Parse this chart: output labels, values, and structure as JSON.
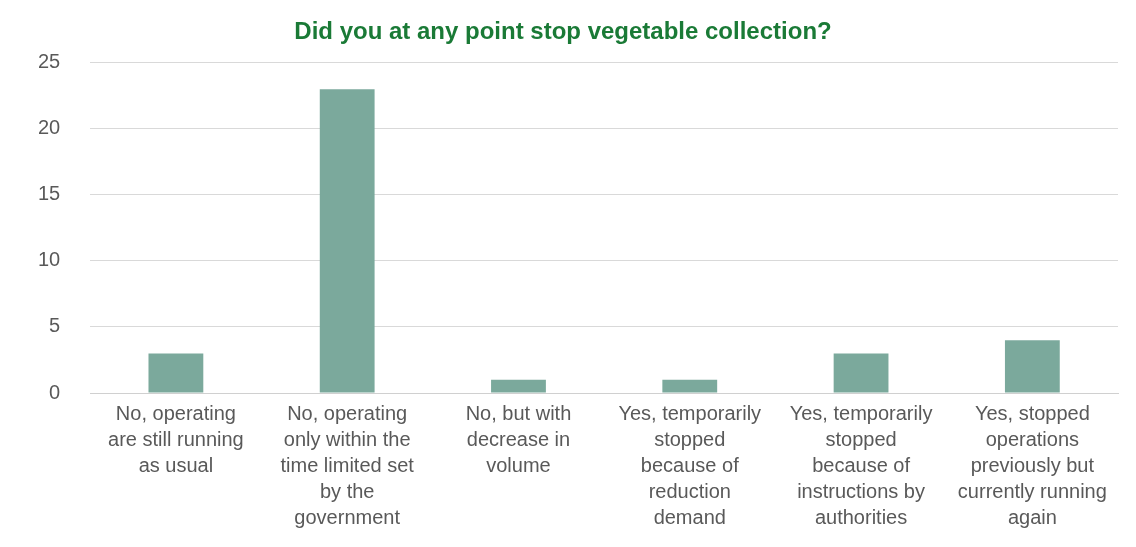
{
  "chart_data": {
    "type": "bar",
    "title": "Did you at any point stop vegetable collection?",
    "categories": [
      "No, operating are still running as usual",
      "No, operating only within the time limited set by the government",
      "No, but with decrease in volume",
      "Yes, temporarily stopped because of reduction demand",
      "Yes, temporarily stopped because of instructions by authorities",
      "Yes, stopped operations previously but currently running again"
    ],
    "values": [
      3,
      23,
      1,
      1,
      3,
      4
    ],
    "color": "#7ba99c",
    "ylim": [
      0,
      25
    ],
    "yticks": [
      0,
      5,
      10,
      15,
      20,
      25
    ],
    "grid": "y",
    "legend": false
  }
}
